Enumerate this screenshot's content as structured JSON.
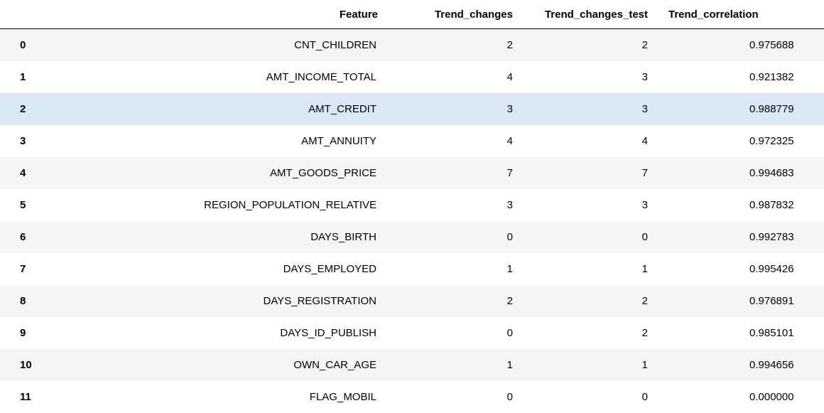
{
  "table": {
    "columns": [
      "",
      "Feature",
      "Trend_changes",
      "Trend_changes_test",
      "Trend_correlation"
    ],
    "highlight_row_index": 2,
    "rows": [
      {
        "idx": "0",
        "feature": "CNT_CHILDREN",
        "tc": "2",
        "tct": "2",
        "corr": "0.975688"
      },
      {
        "idx": "1",
        "feature": "AMT_INCOME_TOTAL",
        "tc": "4",
        "tct": "3",
        "corr": "0.921382"
      },
      {
        "idx": "2",
        "feature": "AMT_CREDIT",
        "tc": "3",
        "tct": "3",
        "corr": "0.988779"
      },
      {
        "idx": "3",
        "feature": "AMT_ANNUITY",
        "tc": "4",
        "tct": "4",
        "corr": "0.972325"
      },
      {
        "idx": "4",
        "feature": "AMT_GOODS_PRICE",
        "tc": "7",
        "tct": "7",
        "corr": "0.994683"
      },
      {
        "idx": "5",
        "feature": "REGION_POPULATION_RELATIVE",
        "tc": "3",
        "tct": "3",
        "corr": "0.987832"
      },
      {
        "idx": "6",
        "feature": "DAYS_BIRTH",
        "tc": "0",
        "tct": "0",
        "corr": "0.992783"
      },
      {
        "idx": "7",
        "feature": "DAYS_EMPLOYED",
        "tc": "1",
        "tct": "1",
        "corr": "0.995426"
      },
      {
        "idx": "8",
        "feature": "DAYS_REGISTRATION",
        "tc": "2",
        "tct": "2",
        "corr": "0.976891"
      },
      {
        "idx": "9",
        "feature": "DAYS_ID_PUBLISH",
        "tc": "0",
        "tct": "2",
        "corr": "0.985101"
      },
      {
        "idx": "10",
        "feature": "OWN_CAR_AGE",
        "tc": "1",
        "tct": "1",
        "corr": "0.994656"
      },
      {
        "idx": "11",
        "feature": "FLAG_MOBIL",
        "tc": "0",
        "tct": "0",
        "corr": "0.000000"
      }
    ]
  },
  "colors": {
    "row_alt": "#f5f5f5",
    "row_hover": "#d9e8f5",
    "header_rule": "#000000"
  }
}
